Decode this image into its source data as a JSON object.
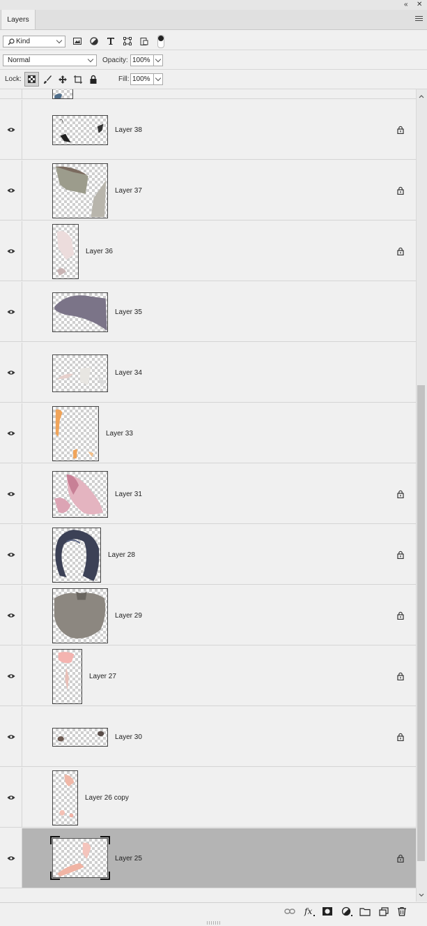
{
  "panel": {
    "tab_label": "Layers",
    "collapse_icon": "double-chevron-left-icon",
    "close_icon": "close-icon",
    "menu_icon": "hamburger-menu-icon"
  },
  "filter": {
    "kind_label": "Kind",
    "filter_icons": [
      "image-filter-icon",
      "adjustment-filter-icon",
      "type-filter-icon",
      "shape-filter-icon",
      "smart-object-filter-icon"
    ]
  },
  "blend": {
    "mode": "Normal",
    "opacity_label": "Opacity:",
    "opacity_value": "100%"
  },
  "lock": {
    "label": "Lock:",
    "fill_label": "Fill:",
    "fill_value": "100%"
  },
  "layers": [
    {
      "name": "Layer 38",
      "locked": true,
      "selected": false
    },
    {
      "name": "Layer 37",
      "locked": true,
      "selected": false
    },
    {
      "name": "Layer 36",
      "locked": true,
      "selected": false
    },
    {
      "name": "Layer 35",
      "locked": false,
      "selected": false
    },
    {
      "name": "Layer 34",
      "locked": false,
      "selected": false
    },
    {
      "name": "Layer 33",
      "locked": false,
      "selected": false
    },
    {
      "name": "Layer 31",
      "locked": true,
      "selected": false
    },
    {
      "name": "Layer 28",
      "locked": true,
      "selected": false
    },
    {
      "name": "Layer 29",
      "locked": true,
      "selected": false
    },
    {
      "name": "Layer 27",
      "locked": true,
      "selected": false
    },
    {
      "name": "Layer 30",
      "locked": true,
      "selected": false
    },
    {
      "name": "Layer 26 copy",
      "locked": false,
      "selected": false
    },
    {
      "name": "Layer 25",
      "locked": true,
      "selected": true
    }
  ],
  "bottom_icons": [
    "link-layers-icon",
    "fx-icon",
    "layer-mask-icon",
    "adjustment-layer-icon",
    "new-group-icon",
    "new-layer-icon",
    "delete-layer-icon"
  ],
  "colors": {
    "panel_bg": "#f0f0f0",
    "selected_row": "#b4b4b4"
  }
}
